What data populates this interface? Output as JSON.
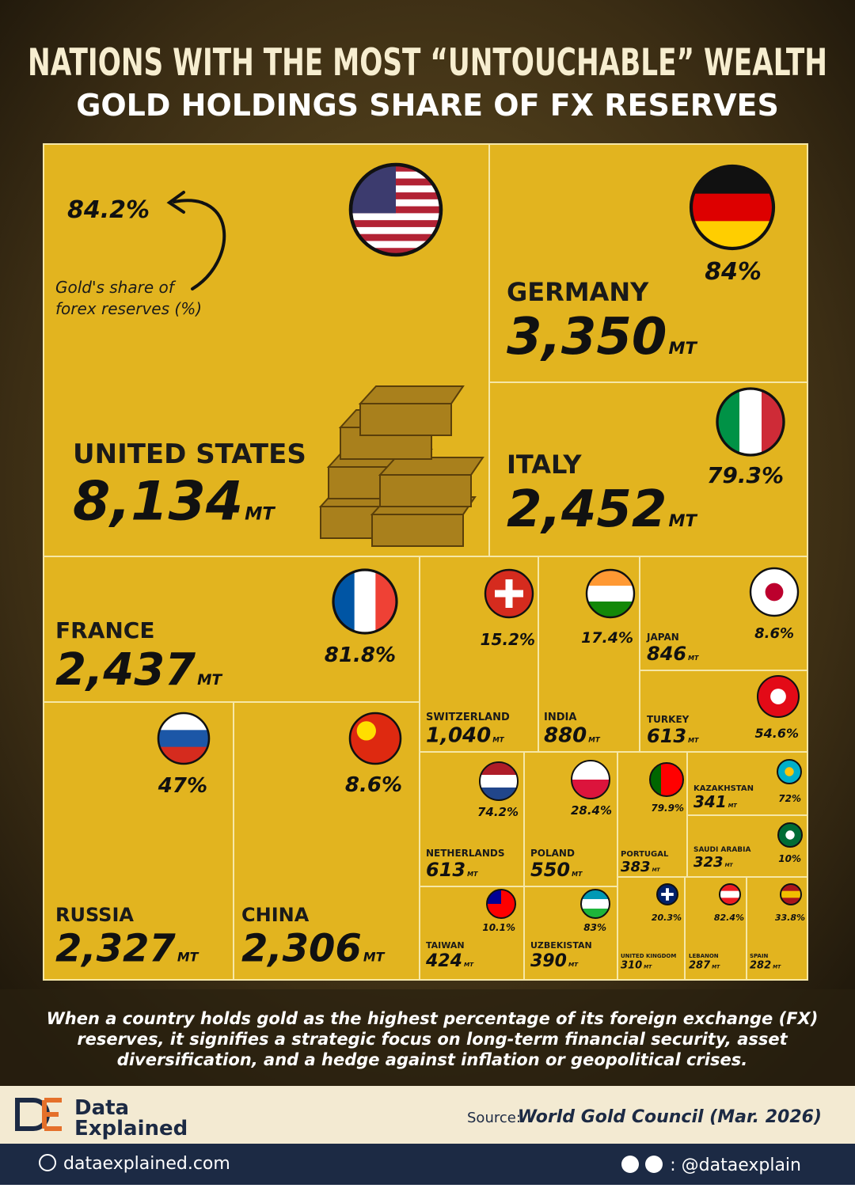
{
  "chart_data": {
    "type": "treemap",
    "title": "NATIONS WITH THE MOST “UNTOUCHABLE” WEALTH",
    "subtitle": "GOLD HOLDINGS SHARE OF FX RESERVES",
    "annotation": [
      "Gold's share of",
      "forex reserves (%)"
    ],
    "unit": "MT",
    "color": "#e2b41f",
    "categories": [
      "UNITED STATES",
      "GERMANY",
      "ITALY",
      "FRANCE",
      "RUSSIA",
      "CHINA",
      "SWITZERLAND",
      "INDIA",
      "JAPAN",
      "TURKEY",
      "NETHERLANDS",
      "POLAND",
      "PORTUGAL",
      "KAZAKHSTAN",
      "SAUDI ARABIA",
      "TAIWAN",
      "UZBEKISTAN",
      "UNITED KINGDOM",
      "LEBANON",
      "SPAIN"
    ],
    "values": [
      8134,
      3350,
      2452,
      2437,
      2327,
      2306,
      1040,
      880,
      846,
      613,
      613,
      550,
      383,
      341,
      323,
      424,
      390,
      310,
      287,
      282
    ],
    "value_labels": [
      "8,134",
      "3,350",
      "2,452",
      "2,437",
      "2,327",
      "2,306",
      "1,040",
      "880",
      "846",
      "613",
      "613",
      "550",
      "383",
      "341",
      "323",
      "424",
      "390",
      "310",
      "287",
      "282"
    ],
    "shares": [
      84.2,
      84,
      79.3,
      81.8,
      47,
      8.6,
      15.2,
      17.4,
      8.6,
      54.6,
      74.2,
      28.4,
      79.9,
      72,
      10,
      10.1,
      83,
      20.3,
      82.4,
      33.8
    ],
    "share_labels": [
      "84.2%",
      "84%",
      "79.3%",
      "81.8%",
      "47%",
      "8.6%",
      "15.2%",
      "17.4%",
      "8.6%",
      "54.6%",
      "74.2%",
      "28.4%",
      "79.9%",
      "72%",
      "10%",
      "10.1%",
      "83%",
      "20.3%",
      "82.4%",
      "33.8%"
    ]
  },
  "footer": {
    "description": [
      "When a country holds gold as the highest percentage of its foreign exchange (FX)",
      "reserves, it signifies a strategic focus on long-term financial security, asset",
      "diversification, and a hedge against inflation or geopolitical crises."
    ],
    "brand": [
      "Data",
      "Explained"
    ],
    "source_label": "Source:",
    "source": "World Gold Council (Mar. 2026)",
    "website": "dataexplained.com",
    "handle": ": @dataexplain"
  }
}
